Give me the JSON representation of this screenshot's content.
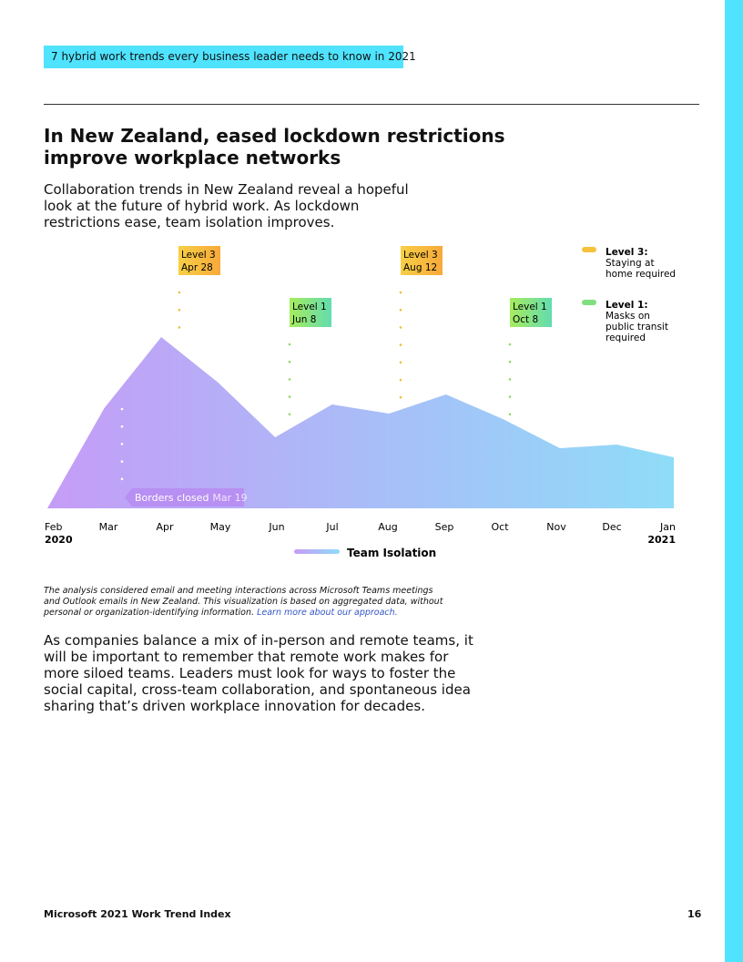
{
  "header": {
    "tag": "7 hybrid work trends every business leader needs to know in 2021"
  },
  "title": [
    "In New Zealand, eased lockdown restrictions",
    "improve workplace networks"
  ],
  "intro": [
    "Collaboration trends in New Zealand reveal a hopeful",
    "look at the future of hybrid work. As lockdown",
    "restrictions ease, team isolation improves."
  ],
  "chart_data": {
    "type": "area",
    "categories": [
      "Feb",
      "Mar",
      "Apr",
      "May",
      "Jun",
      "Jul",
      "Aug",
      "Sep",
      "Oct",
      "Nov",
      "Dec",
      "Jan"
    ],
    "year_start": "2020",
    "year_end": "2021",
    "series": [
      {
        "name": "Team Isolation",
        "color": [
          "#c59cf7",
          "#8fdcf8"
        ],
        "values": [
          0,
          110,
          188,
          138,
          78,
          114,
          104,
          125,
          98,
          66,
          70,
          56
        ]
      }
    ],
    "ylim": [
      0,
      200
    ],
    "annotations": [
      {
        "level": "Level 3",
        "date": "Apr 28"
      },
      {
        "level": "Level 1",
        "date": "Jun 8"
      },
      {
        "level": "Level 3",
        "date": "Aug 12"
      },
      {
        "level": "Level 1",
        "date": "Oct 8"
      },
      {
        "level": "Borders closed",
        "date": "Mar 19"
      }
    ],
    "key": [
      {
        "label": "Level 3:",
        "text": [
          "Staying at",
          "home required"
        ],
        "color": "#f7c23c"
      },
      {
        "label": "Level 1:",
        "text": [
          "Masks on",
          "public transit",
          "required"
        ],
        "color": "#7fe07f"
      }
    ]
  },
  "note": {
    "lines": [
      "The analysis considered email and meeting interactions across Microsoft Teams meetings",
      "and Outlook emails in New Zealand. This visualization is based on aggregated data, without",
      "personal or organization-identifying information."
    ],
    "link": "Learn more about our approach."
  },
  "body": [
    "As companies balance a mix of in-person and remote teams, it",
    "will be important to remember that remote work makes for",
    "more siloed teams. Leaders must look for ways to foster the",
    "social capital, cross-team collaboration, and spontaneous idea",
    "sharing that’s driven workplace innovation for decades."
  ],
  "footer": {
    "left": "Microsoft 2021 Work Trend Index",
    "page": "16"
  }
}
